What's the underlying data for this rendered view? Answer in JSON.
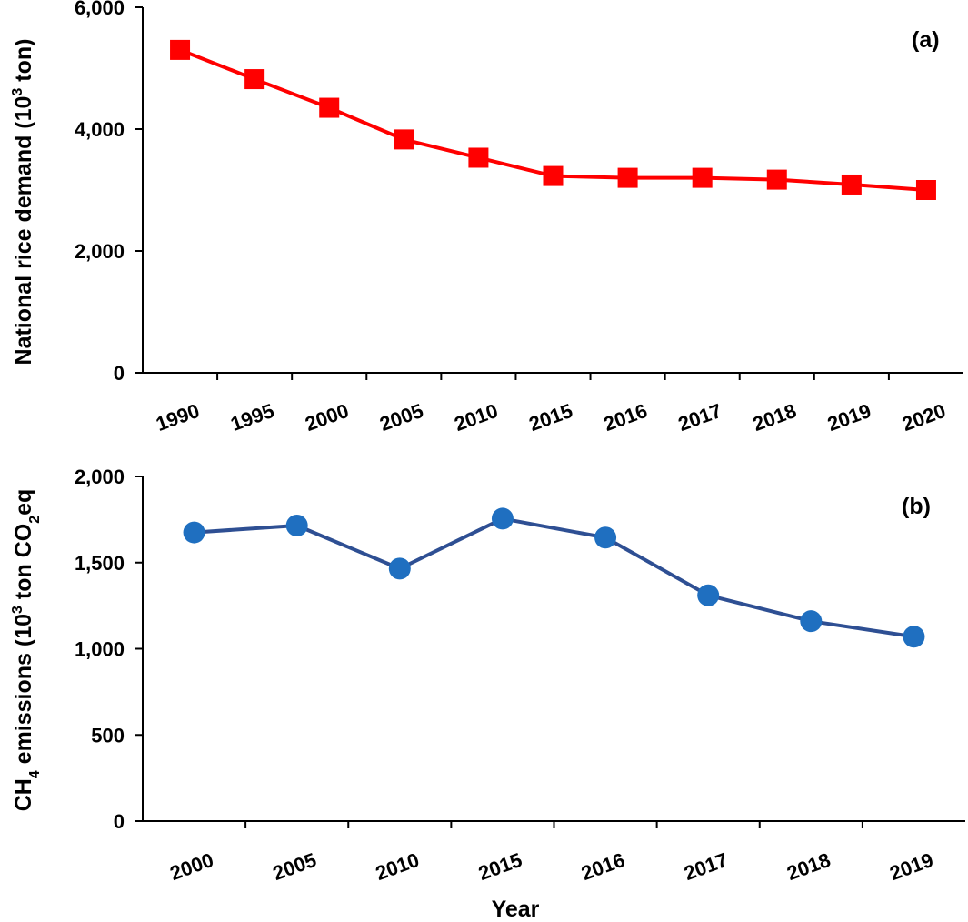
{
  "chart_data": [
    {
      "type": "line",
      "panel_label": "(a)",
      "categories": [
        "1990",
        "1995",
        "2000",
        "2005",
        "2010",
        "2015",
        "2016",
        "2017",
        "2018",
        "2019",
        "2020"
      ],
      "series": [
        {
          "name": "National rice demand",
          "values": [
            5300,
            4820,
            4350,
            3830,
            3530,
            3230,
            3200,
            3200,
            3170,
            3090,
            3000
          ],
          "color": "#ff0000",
          "marker": "square"
        }
      ],
      "ylim": [
        0,
        6000
      ],
      "yticks": [
        0,
        2000,
        4000,
        6000
      ],
      "ytick_labels": [
        "0",
        "2,000",
        "4,000",
        "6,000"
      ],
      "ylabel_main": "National rice demand (10",
      "ylabel_sup": "3",
      "ylabel_tail": " ton)",
      "xlabel": ""
    },
    {
      "type": "line",
      "panel_label": "(b)",
      "categories": [
        "2000",
        "2005",
        "2010",
        "2015",
        "2016",
        "2017",
        "2018",
        "2019"
      ],
      "series": [
        {
          "name": "CH4 emissions",
          "values": [
            1675,
            1715,
            1465,
            1755,
            1645,
            1310,
            1160,
            1070
          ],
          "color": "#2e4f93",
          "marker_color": "#1f6fc0",
          "marker": "circle"
        }
      ],
      "ylim": [
        0,
        2000
      ],
      "yticks": [
        0,
        500,
        1000,
        1500,
        2000
      ],
      "ytick_labels": [
        "0",
        "500",
        "1,000",
        "1,500",
        "2,000"
      ],
      "ylabel_a": "CH",
      "ylabel_sub4": "4",
      "ylabel_b": " emissions  (10",
      "ylabel_sup3": "3",
      "ylabel_c": " ton CO",
      "ylabel_sub2": "2",
      "ylabel_d": "eq",
      "xlabel": "Year"
    }
  ]
}
